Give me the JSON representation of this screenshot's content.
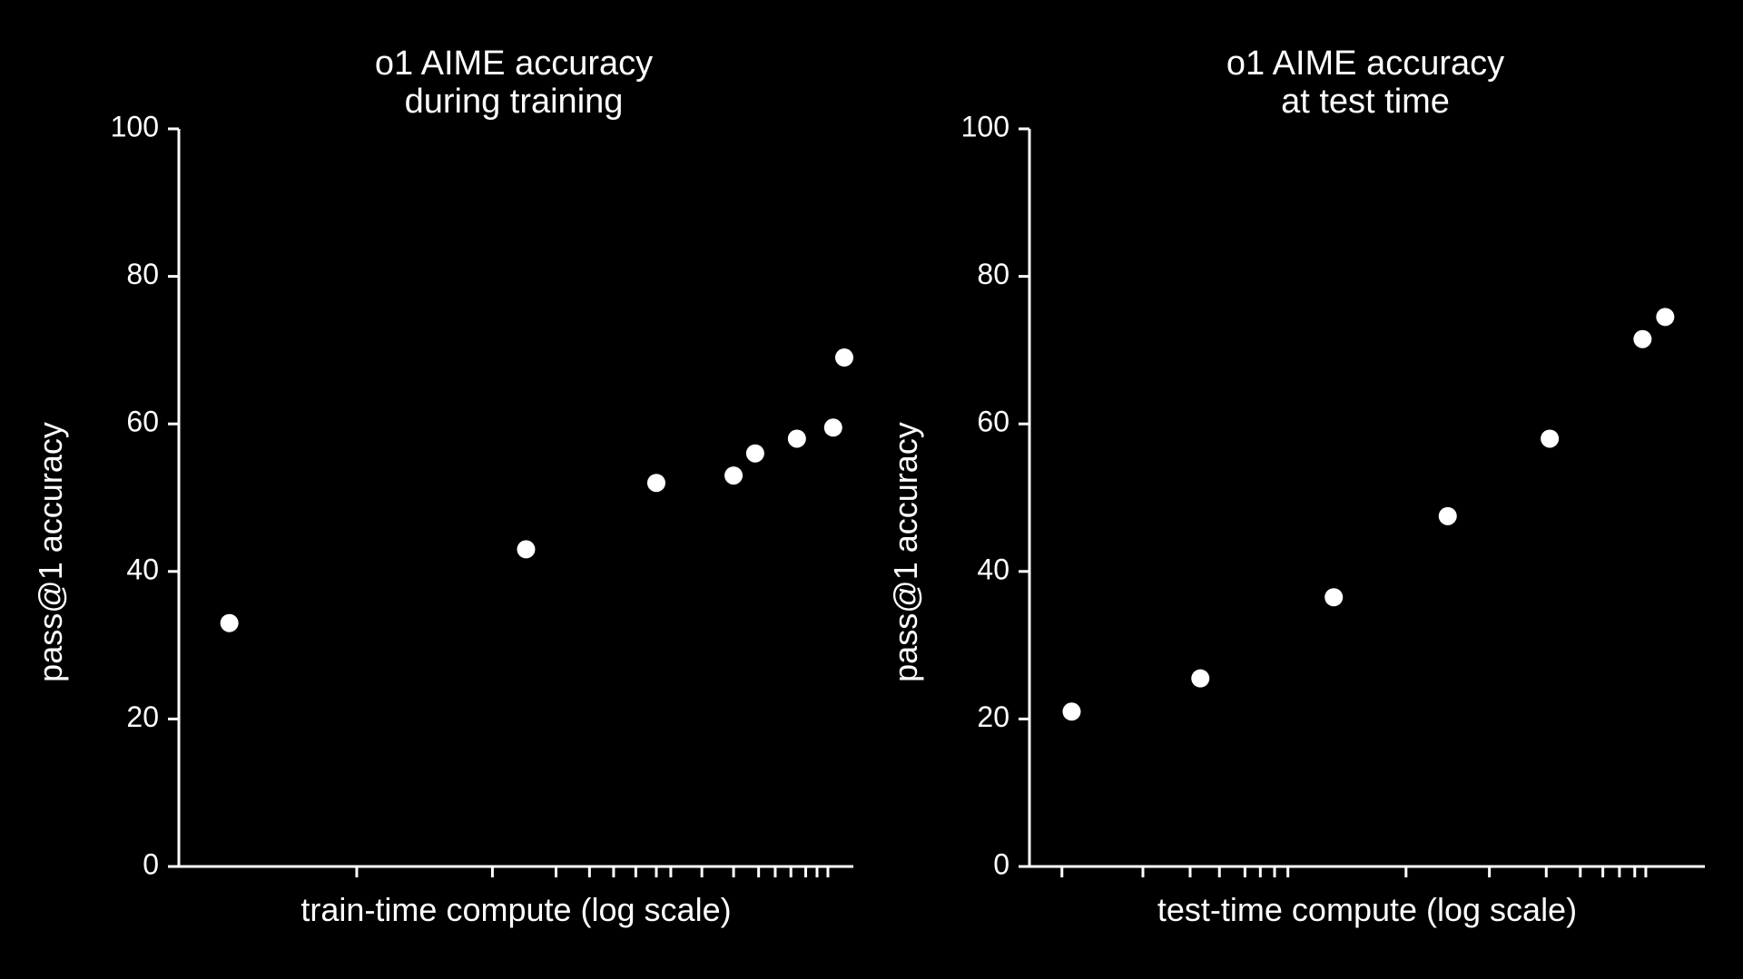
{
  "chart_data": [
    {
      "type": "scatter",
      "title": [
        "o1 AIME accuracy",
        "during training"
      ],
      "xlabel": "train-time compute (log scale)",
      "ylabel": "pass@1 accuracy",
      "ylim": [
        0,
        100
      ],
      "yticks": [
        0,
        20,
        40,
        60,
        80,
        100
      ],
      "xscale": "log",
      "x_tick_marks": [
        1.9,
        3.1,
        3.9,
        4.4,
        4.8,
        5.2,
        5.6,
        5.9,
        6.6,
        7.4,
        8.1,
        8.6,
        9.1,
        9.6,
        10.0,
        10.4
      ],
      "x_min": 1,
      "x_max": 11.4,
      "points": [
        {
          "x": 1.2,
          "y": 33
        },
        {
          "x": 3.5,
          "y": 43
        },
        {
          "x": 5.6,
          "y": 52
        },
        {
          "x": 7.4,
          "y": 53
        },
        {
          "x": 8.0,
          "y": 56
        },
        {
          "x": 9.3,
          "y": 58
        },
        {
          "x": 10.6,
          "y": 59.5
        },
        {
          "x": 12.2,
          "y": 69
        }
      ],
      "grid": false,
      "legend": "none"
    },
    {
      "type": "scatter",
      "title": [
        "o1 AIME accuracy",
        "at test time"
      ],
      "xlabel": "test-time compute (log scale)",
      "ylabel": "pass@1 accuracy",
      "ylim": [
        0,
        100
      ],
      "yticks": [
        0,
        20,
        40,
        60,
        80,
        100
      ],
      "xscale": "log",
      "x_tick_marks": [
        1.0,
        1.5,
        1.9,
        2.2,
        2.5,
        2.7,
        2.9,
        3.1,
        5.6,
        8.5,
        11.3,
        13.4,
        15.0,
        16.3,
        17.6,
        18.6
      ],
      "x_min": 0.85,
      "x_max": 25,
      "points": [
        {
          "x": 1.05,
          "y": 21
        },
        {
          "x": 2.0,
          "y": 25.5
        },
        {
          "x": 3.9,
          "y": 36.5
        },
        {
          "x": 6.9,
          "y": 47.5
        },
        {
          "x": 11.5,
          "y": 58
        },
        {
          "x": 18.3,
          "y": 71.5
        },
        {
          "x": 20.5,
          "y": 74.5
        }
      ],
      "grid": false,
      "legend": "none"
    }
  ]
}
